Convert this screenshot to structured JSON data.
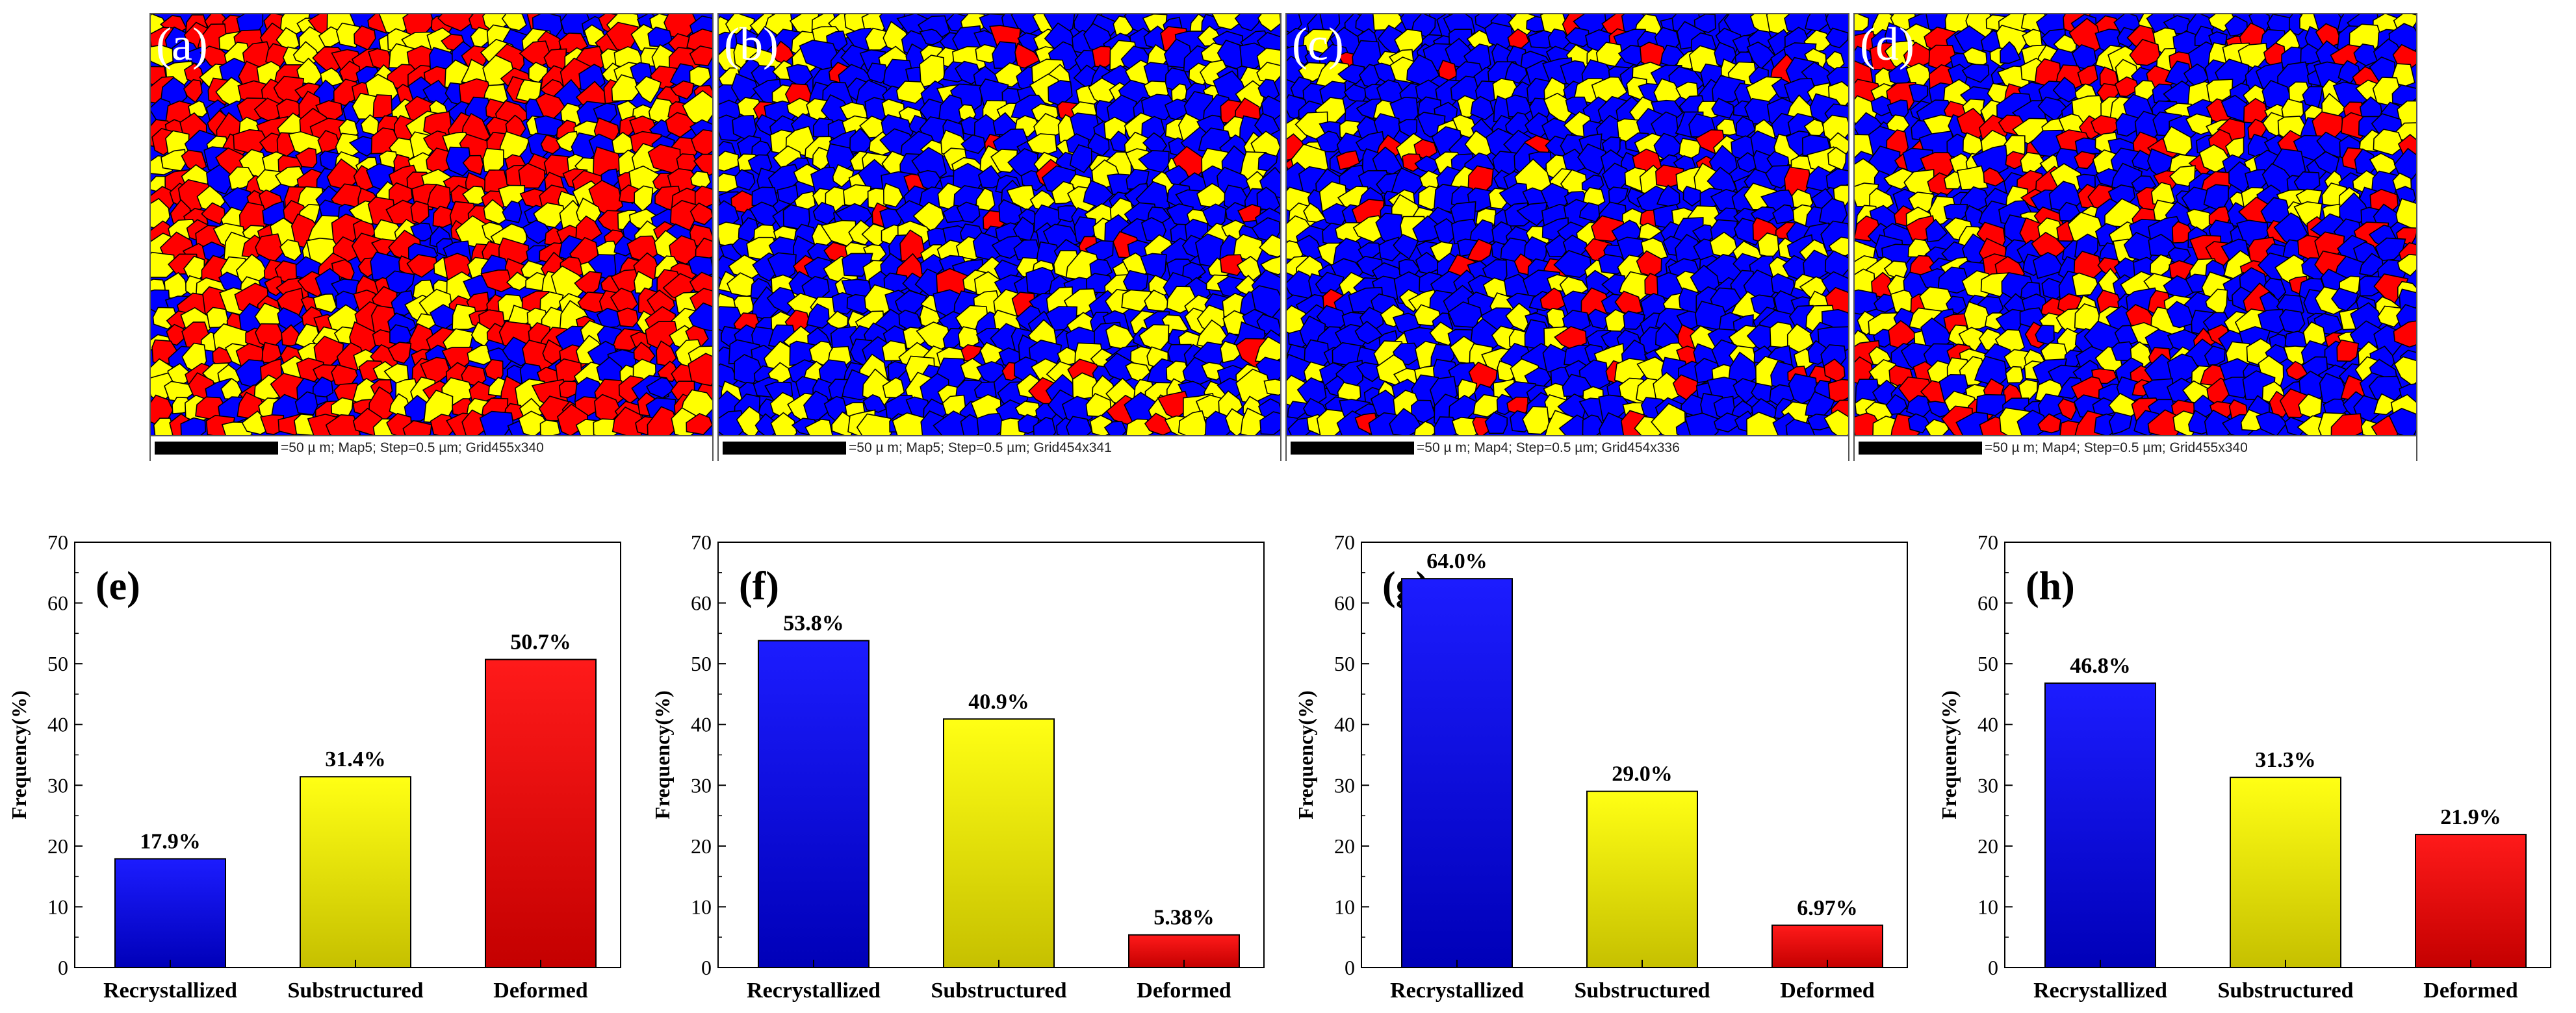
{
  "maps": [
    {
      "letter": "(a)",
      "caption": "=50 µ m; Map5; Step=0.5 µm; Grid455x340",
      "mix": [
        0.18,
        0.31,
        0.51
      ]
    },
    {
      "letter": "(b)",
      "caption": "=50 µ m; Map5; Step=0.5 µm; Grid454x341",
      "mix": [
        0.54,
        0.41,
        0.05
      ]
    },
    {
      "letter": "(c)",
      "caption": "=50 µ m; Map4; Step=0.5 µm; Grid454x336",
      "mix": [
        0.64,
        0.29,
        0.07
      ]
    },
    {
      "letter": "(d)",
      "caption": "=50 µ m; Map4; Step=0.5 µm; Grid455x340",
      "mix": [
        0.47,
        0.31,
        0.22
      ]
    }
  ],
  "colors": {
    "recrystallized": "#0000ff",
    "substructured": "#ffff00",
    "deformed": "#ff0000",
    "boundary": "#000000"
  },
  "chart_data": [
    {
      "type": "bar",
      "panel_label": "(e)",
      "categories": [
        "Recrystallized",
        "Substructured",
        "Deformed"
      ],
      "values": [
        17.9,
        31.4,
        50.7
      ],
      "data_labels": [
        "17.9%",
        "31.4%",
        "50.7%"
      ],
      "ylabel": "Frequency(%)",
      "xlabel": "",
      "ylim": [
        0,
        70
      ],
      "yticks": [
        "0",
        "10",
        "20",
        "30",
        "40",
        "50",
        "60",
        "70"
      ]
    },
    {
      "type": "bar",
      "panel_label": "(f)",
      "categories": [
        "Recrystallized",
        "Substructured",
        "Deformed"
      ],
      "values": [
        53.8,
        40.9,
        5.38
      ],
      "data_labels": [
        "53.8%",
        "40.9%",
        "5.38%"
      ],
      "ylabel": "Frequency(%)",
      "xlabel": "",
      "ylim": [
        0,
        70
      ],
      "yticks": [
        "0",
        "10",
        "20",
        "30",
        "40",
        "50",
        "60",
        "70"
      ]
    },
    {
      "type": "bar",
      "panel_label": "(g)",
      "categories": [
        "Recrystallized",
        "Substructured",
        "Deformed"
      ],
      "values": [
        64.0,
        29.0,
        6.97
      ],
      "data_labels": [
        "64.0%",
        "29.0%",
        "6.97%"
      ],
      "ylabel": "Frequency(%)",
      "xlabel": "",
      "ylim": [
        0,
        70
      ],
      "yticks": [
        "0",
        "10",
        "20",
        "30",
        "40",
        "50",
        "60",
        "70"
      ]
    },
    {
      "type": "bar",
      "panel_label": "(h)",
      "categories": [
        "Recrystallized",
        "Substructured",
        "Deformed"
      ],
      "values": [
        46.8,
        31.3,
        21.9
      ],
      "data_labels": [
        "46.8%",
        "31.3%",
        "21.9%"
      ],
      "ylabel": "Frequency(%)",
      "xlabel": "",
      "ylim": [
        0,
        70
      ],
      "yticks": [
        "0",
        "10",
        "20",
        "30",
        "40",
        "50",
        "60",
        "70"
      ]
    }
  ]
}
